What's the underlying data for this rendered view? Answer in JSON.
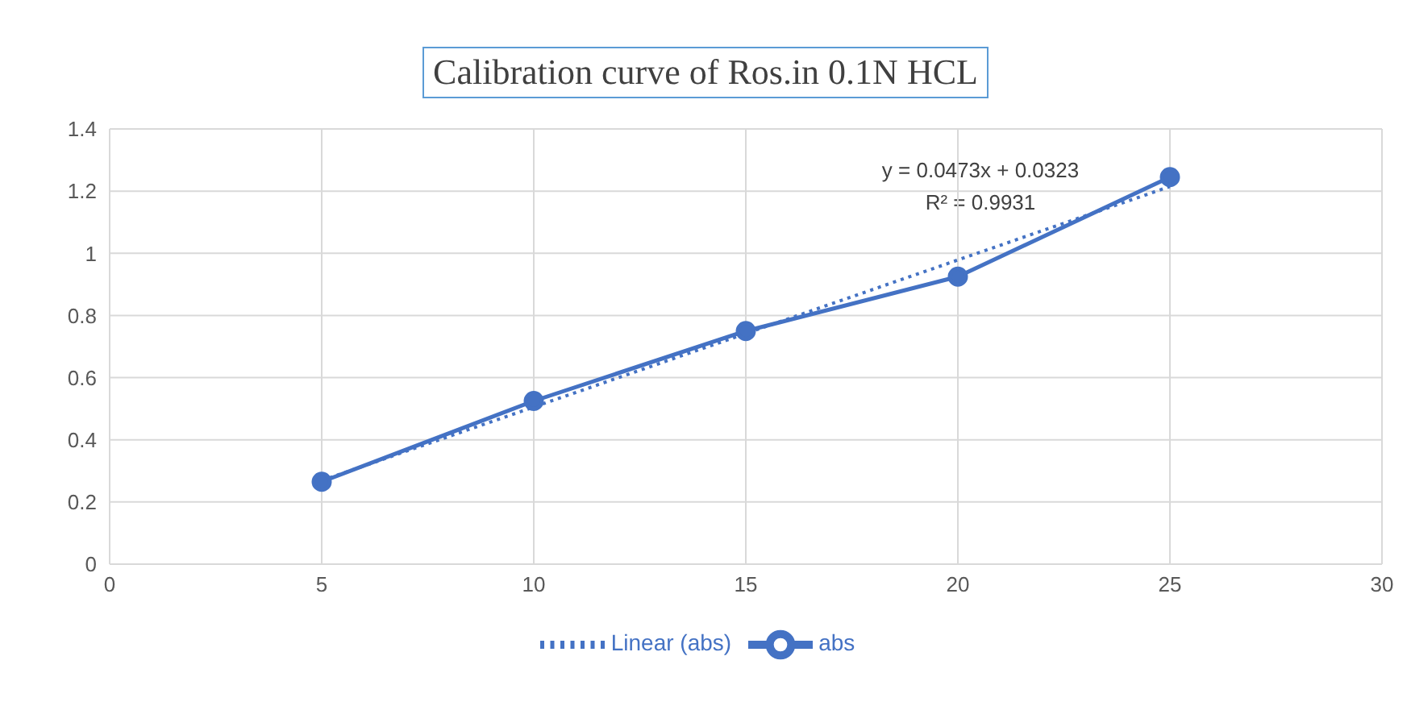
{
  "chart_data": {
    "type": "line",
    "title": "Calibration curve of Ros.in 0.1N HCL",
    "annotations": [
      "y = 0.0473x + 0.0323",
      "R² = 0.9931"
    ],
    "x": [
      5,
      10,
      15,
      20,
      25
    ],
    "series": [
      {
        "name": "abs",
        "color": "#4472c4",
        "values": [
          0.265,
          0.525,
          0.75,
          0.925,
          1.245
        ],
        "marker": "circle",
        "line_style": "solid"
      },
      {
        "name": "Linear (abs)",
        "type": "line",
        "color": "#4472c4",
        "x": [
          5,
          25
        ],
        "values": [
          0.269,
          1.215
        ],
        "marker": "none",
        "line_style": "dotted"
      }
    ],
    "xlim": [
      0,
      30
    ],
    "xticks": [
      0,
      5,
      10,
      15,
      20,
      25,
      30
    ],
    "ylim": [
      0,
      1.4
    ],
    "yticks": [
      0,
      0.2,
      0.4,
      0.6,
      0.8,
      1,
      1.2,
      1.4
    ],
    "grid": true,
    "legend": "bottom"
  }
}
